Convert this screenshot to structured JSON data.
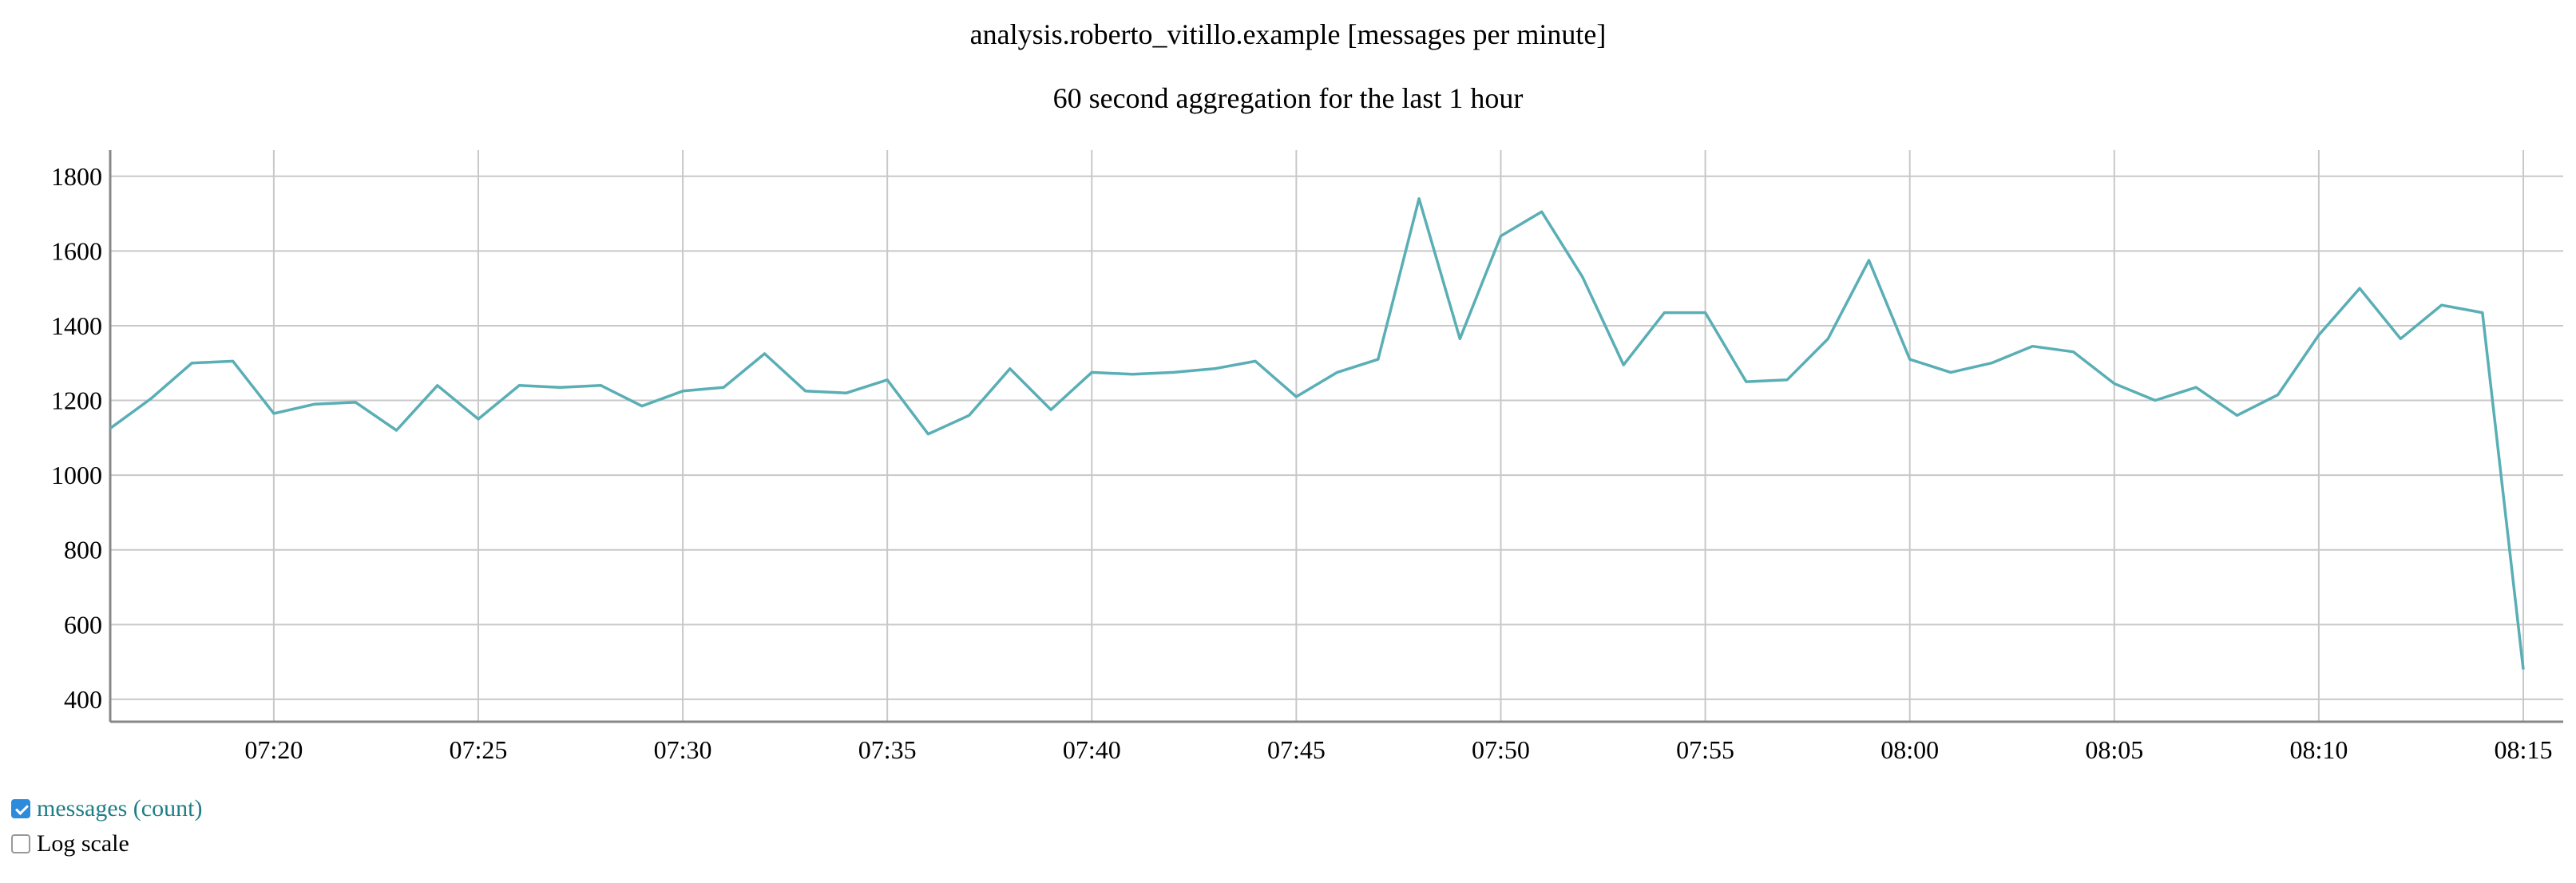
{
  "chart_data": {
    "type": "line",
    "title": "analysis.roberto_vitillo.example [messages per minute]",
    "subtitle": "60 second aggregation for the last 1 hour",
    "xlabel": "",
    "ylabel": "",
    "x": [
      "07:16",
      "07:17",
      "07:18",
      "07:19",
      "07:20",
      "07:21",
      "07:22",
      "07:23",
      "07:24",
      "07:25",
      "07:26",
      "07:27",
      "07:28",
      "07:29",
      "07:30",
      "07:31",
      "07:32",
      "07:33",
      "07:34",
      "07:35",
      "07:36",
      "07:37",
      "07:38",
      "07:39",
      "07:40",
      "07:41",
      "07:42",
      "07:43",
      "07:44",
      "07:45",
      "07:46",
      "07:47",
      "07:48",
      "07:49",
      "07:50",
      "07:51",
      "07:52",
      "07:53",
      "07:54",
      "07:55",
      "07:56",
      "07:57",
      "07:58",
      "07:59",
      "08:00",
      "08:01",
      "08:02",
      "08:03",
      "08:04",
      "08:05",
      "08:06",
      "08:07",
      "08:08",
      "08:09",
      "08:10",
      "08:11",
      "08:12",
      "08:13",
      "08:14",
      "08:15"
    ],
    "x_ticks": [
      "07:20",
      "07:25",
      "07:30",
      "07:35",
      "07:40",
      "07:45",
      "07:50",
      "07:55",
      "08:00",
      "08:05",
      "08:10",
      "08:15"
    ],
    "y_ticks": [
      400,
      600,
      800,
      1000,
      1200,
      1400,
      1600,
      1800
    ],
    "ylim": [
      340,
      1870
    ],
    "grid": true,
    "series": [
      {
        "name": "messages (count)",
        "color": "#5aaeb5",
        "values": [
          1125,
          1205,
          1300,
          1305,
          1165,
          1190,
          1195,
          1120,
          1240,
          1150,
          1240,
          1235,
          1240,
          1185,
          1225,
          1235,
          1325,
          1225,
          1220,
          1255,
          1110,
          1160,
          1285,
          1175,
          1275,
          1270,
          1275,
          1285,
          1305,
          1210,
          1275,
          1310,
          1740,
          1365,
          1640,
          1705,
          1530,
          1295,
          1435,
          1435,
          1250,
          1255,
          1365,
          1575,
          1310,
          1275,
          1300,
          1345,
          1330,
          1245,
          1200,
          1235,
          1160,
          1215,
          1375,
          1500,
          1365,
          1455,
          1435,
          480
        ]
      }
    ]
  },
  "controls": {
    "series_toggle_label": "messages (count)",
    "series_toggle_checked": true,
    "log_scale_label": "Log scale",
    "log_scale_checked": false
  }
}
